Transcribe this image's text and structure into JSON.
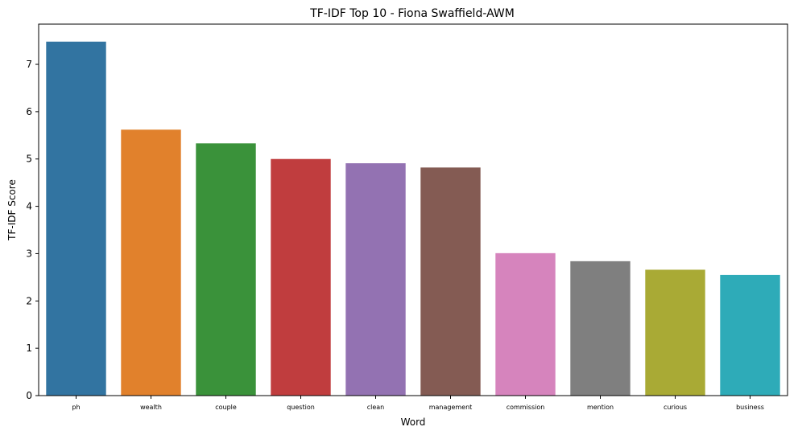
{
  "chart_data": {
    "type": "bar",
    "title": "TF-IDF Top 10 - Fiona Swaffield-AWM",
    "xlabel": "Word",
    "ylabel": "TF-IDF Score",
    "ylim": [
      0,
      7.85
    ],
    "yticks": [
      0,
      1,
      2,
      3,
      4,
      5,
      6,
      7
    ],
    "grid": false,
    "categories": [
      "ph",
      "wealth",
      "couple",
      "question",
      "clean",
      "management",
      "commission",
      "mention",
      "curious",
      "business"
    ],
    "values": [
      7.48,
      5.62,
      5.33,
      5.0,
      4.91,
      4.82,
      3.01,
      2.84,
      2.66,
      2.55
    ],
    "colors": [
      "#3274a1",
      "#e1812c",
      "#3a923a",
      "#c03d3e",
      "#9372b2",
      "#845b53",
      "#d684bd",
      "#7f7f7f",
      "#a9aa35",
      "#2eabb8"
    ]
  }
}
